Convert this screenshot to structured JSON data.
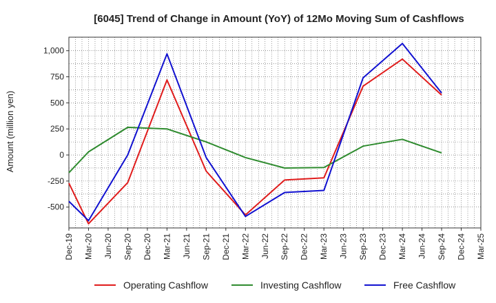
{
  "chart_data": {
    "type": "line",
    "title": "[6045]  Trend of Change in Amount (YoY) of 12Mo Moving Sum of Cashflows",
    "xlabel": "",
    "ylabel": "Amount (million yen)",
    "ylim": [
      -700,
      1130
    ],
    "yticks": [
      -500,
      -250,
      0,
      250,
      500,
      750,
      1000
    ],
    "ytick_labels": [
      "-500",
      "-250",
      "0",
      "250",
      "500",
      "750",
      "1,000"
    ],
    "categories": [
      "Dec-19",
      "Mar-20",
      "Jun-20",
      "Sep-20",
      "Dec-20",
      "Mar-21",
      "Jun-21",
      "Sep-21",
      "Dec-21",
      "Mar-22",
      "Jun-22",
      "Sep-22",
      "Dec-22",
      "Mar-23",
      "Jun-23",
      "Sep-23",
      "Dec-23",
      "Mar-24",
      "Jun-24",
      "Sep-24",
      "Dec-24",
      "Mar-25"
    ],
    "grid": true,
    "legend_position": "bottom",
    "series": [
      {
        "name": "Operating Cashflow",
        "color": "#e01b1b",
        "values": [
          -270,
          -660,
          null,
          -265,
          null,
          720,
          null,
          -155,
          null,
          -575,
          null,
          -240,
          null,
          -220,
          null,
          660,
          null,
          920,
          null,
          575,
          null,
          null
        ]
      },
      {
        "name": "Investing Cashflow",
        "color": "#2e8b2e",
        "values": [
          -170,
          30,
          null,
          265,
          null,
          250,
          null,
          125,
          null,
          -25,
          null,
          -125,
          null,
          -120,
          null,
          85,
          null,
          150,
          null,
          20,
          null,
          null
        ]
      },
      {
        "name": "Free Cashflow",
        "color": "#1010d0",
        "values": [
          -445,
          -630,
          null,
          0,
          null,
          970,
          null,
          -25,
          null,
          -590,
          null,
          -360,
          null,
          -340,
          null,
          740,
          null,
          1070,
          null,
          595,
          null,
          null
        ]
      }
    ]
  }
}
